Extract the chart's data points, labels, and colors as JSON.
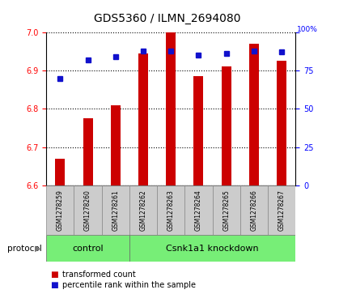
{
  "title": "GDS5360 / ILMN_2694080",
  "samples": [
    "GSM1278259",
    "GSM1278260",
    "GSM1278261",
    "GSM1278262",
    "GSM1278263",
    "GSM1278264",
    "GSM1278265",
    "GSM1278266",
    "GSM1278267"
  ],
  "transformed_counts": [
    6.67,
    6.775,
    6.81,
    6.945,
    7.0,
    6.885,
    6.91,
    6.97,
    6.925
  ],
  "percentile_ranks": [
    70,
    82,
    84,
    88,
    88,
    85,
    86,
    88,
    87
  ],
  "ylim_left": [
    6.6,
    7.0
  ],
  "ylim_right": [
    0,
    100
  ],
  "yticks_left": [
    6.6,
    6.7,
    6.8,
    6.9,
    7.0
  ],
  "yticks_right": [
    0,
    25,
    50,
    75,
    100
  ],
  "bar_color": "#cc0000",
  "dot_color": "#1111cc",
  "bar_width": 0.35,
  "control_label": "control",
  "knockdown_label": "Csnk1a1 knockdown",
  "protocol_label": "protocol",
  "legend_bar_label": "transformed count",
  "legend_dot_label": "percentile rank within the sample",
  "ctrl_color": "#77ee77",
  "kd_color": "#77ee77",
  "sample_box_color": "#cccccc",
  "n_control": 3,
  "n_knockdown": 6
}
